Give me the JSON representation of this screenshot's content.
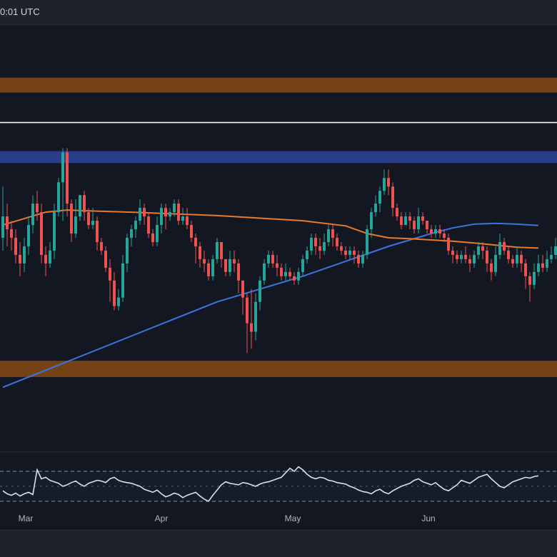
{
  "header": {
    "time_label": "0:01 UTC"
  },
  "colors": {
    "background": "#131722",
    "zone_orange": "#7a4416",
    "zone_blue": "#2a3f8f",
    "level_line": "#ffffff",
    "candle_up": "#26a69a",
    "candle_down": "#ef5350",
    "ma_orange": "#e8792a",
    "ma_blue": "#3b74e0",
    "rsi_line": "#d8dff0",
    "rsi_band": "#8a8f99",
    "separator": "#2a2e39"
  },
  "chart_data": {
    "type": "candlestick",
    "x_ticks": [
      "Mar",
      "Apr",
      "May",
      "Jun"
    ],
    "price_range": [
      0,
      100
    ],
    "zones": [
      {
        "name": "resistance-zone-top",
        "from": 87.5,
        "to": 84.0,
        "color": "orange"
      },
      {
        "name": "supply-zone",
        "from": 70.3,
        "to": 67.5,
        "color": "blue"
      },
      {
        "name": "support-zone-bottom",
        "from": 21.2,
        "to": 17.4,
        "color": "orange"
      }
    ],
    "levels": [
      {
        "name": "horizontal-level",
        "value": 77.0
      }
    ],
    "candles": [
      [
        50,
        55,
        62,
        47
      ],
      [
        55,
        52,
        58,
        48
      ],
      [
        52,
        50,
        54,
        47
      ],
      [
        50,
        46,
        52,
        44
      ],
      [
        46,
        44,
        49,
        41
      ],
      [
        44,
        48,
        50,
        42
      ],
      [
        48,
        53,
        55,
        46
      ],
      [
        53,
        58,
        60,
        51
      ],
      [
        58,
        56,
        61,
        54
      ],
      [
        56,
        46,
        58,
        44
      ],
      [
        46,
        44,
        48,
        41
      ],
      [
        44,
        47,
        49,
        43
      ],
      [
        47,
        56,
        58,
        45
      ],
      [
        56,
        63,
        64,
        55
      ],
      [
        63,
        70,
        71,
        54
      ],
      [
        70,
        58,
        71,
        55
      ],
      [
        58,
        51,
        59,
        49
      ],
      [
        51,
        55,
        59,
        50
      ],
      [
        55,
        60,
        60,
        54
      ],
      [
        60,
        56,
        61,
        54
      ],
      [
        56,
        53,
        57,
        52
      ],
      [
        53,
        54,
        57,
        52
      ],
      [
        54,
        49,
        55,
        47
      ],
      [
        49,
        47,
        50,
        46
      ],
      [
        47,
        43,
        48,
        42
      ],
      [
        43,
        40,
        45,
        35
      ],
      [
        40,
        34,
        42,
        33
      ],
      [
        34,
        36,
        38,
        33
      ],
      [
        36,
        44,
        46,
        35
      ],
      [
        44,
        50,
        51,
        42
      ],
      [
        50,
        52,
        53,
        48
      ],
      [
        52,
        54,
        55,
        50
      ],
      [
        54,
        57,
        59,
        53
      ],
      [
        57,
        55,
        58,
        53
      ],
      [
        55,
        51,
        56,
        50
      ],
      [
        51,
        49,
        52,
        48
      ],
      [
        49,
        53,
        55,
        48
      ],
      [
        53,
        57,
        58,
        51
      ],
      [
        57,
        55,
        58,
        52
      ],
      [
        55,
        56,
        57,
        54
      ],
      [
        56,
        58,
        59,
        55
      ],
      [
        58,
        54,
        59,
        53
      ],
      [
        54,
        55,
        57,
        53
      ],
      [
        55,
        53,
        57,
        52
      ],
      [
        53,
        50,
        54,
        49
      ],
      [
        50,
        48,
        51,
        44
      ],
      [
        48,
        45,
        49,
        43
      ],
      [
        45,
        44,
        47,
        42
      ],
      [
        44,
        41,
        45,
        40
      ],
      [
        41,
        45,
        46,
        40
      ],
      [
        45,
        49,
        50,
        44
      ],
      [
        49,
        45,
        49,
        43
      ],
      [
        45,
        42,
        45,
        41
      ],
      [
        42,
        45,
        47,
        41
      ],
      [
        45,
        44,
        47,
        42
      ],
      [
        44,
        40,
        45,
        37
      ],
      [
        40,
        36,
        40,
        32
      ],
      [
        36,
        30,
        37,
        23
      ],
      [
        30,
        28,
        38,
        24
      ],
      [
        28,
        35,
        37,
        26
      ],
      [
        35,
        40,
        41,
        33
      ],
      [
        40,
        44,
        45,
        39
      ],
      [
        44,
        46,
        47,
        43
      ],
      [
        46,
        44,
        47,
        43
      ],
      [
        44,
        43,
        46,
        41
      ],
      [
        43,
        41,
        44,
        40
      ],
      [
        41,
        42,
        44,
        40
      ],
      [
        42,
        41,
        43,
        40
      ],
      [
        41,
        40,
        42,
        39
      ],
      [
        40,
        42,
        43,
        39
      ],
      [
        42,
        45,
        46,
        41
      ],
      [
        45,
        47,
        48,
        44
      ],
      [
        47,
        50,
        51,
        46
      ],
      [
        50,
        48,
        51,
        46
      ],
      [
        48,
        47,
        50,
        45
      ],
      [
        47,
        49,
        51,
        46
      ],
      [
        49,
        52,
        53,
        48
      ],
      [
        52,
        50,
        53,
        48
      ],
      [
        50,
        48,
        51,
        47
      ],
      [
        48,
        47,
        49,
        46
      ],
      [
        47,
        46,
        48,
        45
      ],
      [
        46,
        47,
        48,
        45
      ],
      [
        47,
        46,
        48,
        44
      ],
      [
        46,
        44,
        47,
        43
      ],
      [
        44,
        46,
        47,
        43
      ],
      [
        46,
        52,
        53,
        45
      ],
      [
        52,
        56,
        57,
        50
      ],
      [
        56,
        58,
        60,
        55
      ],
      [
        58,
        61,
        62,
        56
      ],
      [
        61,
        64,
        66,
        60
      ],
      [
        64,
        62,
        66,
        60
      ],
      [
        62,
        57,
        63,
        55
      ],
      [
        57,
        55,
        58,
        54
      ],
      [
        55,
        53,
        56,
        52
      ],
      [
        53,
        55,
        56,
        53
      ],
      [
        55,
        54,
        56,
        52
      ],
      [
        54,
        52,
        55,
        51
      ],
      [
        52,
        55,
        57,
        51
      ],
      [
        55,
        54,
        56,
        53
      ],
      [
        54,
        52,
        54,
        51
      ],
      [
        52,
        51,
        53,
        50
      ],
      [
        51,
        52,
        53,
        50
      ],
      [
        52,
        51,
        53,
        50
      ],
      [
        51,
        50,
        52,
        49
      ],
      [
        50,
        47,
        51,
        46
      ],
      [
        47,
        46,
        48,
        44
      ],
      [
        46,
        45,
        47,
        44
      ],
      [
        45,
        46,
        47,
        44
      ],
      [
        46,
        45,
        48,
        44
      ],
      [
        45,
        44,
        46,
        42
      ],
      [
        44,
        46,
        47,
        43
      ],
      [
        46,
        48,
        49,
        45
      ],
      [
        48,
        47,
        49,
        45
      ],
      [
        47,
        44,
        48,
        42
      ],
      [
        44,
        42,
        45,
        40
      ],
      [
        42,
        46,
        48,
        41
      ],
      [
        46,
        49,
        51,
        45
      ],
      [
        49,
        47,
        50,
        46
      ],
      [
        47,
        45,
        48,
        44
      ],
      [
        45,
        44,
        46,
        43
      ],
      [
        44,
        46,
        48,
        43
      ],
      [
        46,
        44,
        47,
        42
      ],
      [
        44,
        41,
        45,
        38
      ],
      [
        41,
        39,
        42,
        35
      ],
      [
        39,
        42,
        44,
        38
      ],
      [
        42,
        44,
        46,
        41
      ],
      [
        44,
        43,
        46,
        42
      ],
      [
        43,
        45,
        47,
        42
      ],
      [
        45,
        46,
        48,
        44
      ],
      [
        46,
        48,
        50,
        45
      ]
    ],
    "ma_orange": [
      [
        0,
        53
      ],
      [
        5,
        54.5
      ],
      [
        10,
        56
      ],
      [
        15,
        56.5
      ],
      [
        20,
        56.3
      ],
      [
        30,
        56
      ],
      [
        40,
        55.6
      ],
      [
        50,
        55.2
      ],
      [
        60,
        54.6
      ],
      [
        70,
        54
      ],
      [
        80,
        52.8
      ],
      [
        85,
        51
      ],
      [
        90,
        50
      ],
      [
        95,
        49.8
      ],
      [
        100,
        49.5
      ],
      [
        105,
        49.2
      ],
      [
        110,
        48.8
      ],
      [
        115,
        48.3
      ],
      [
        120,
        47.8
      ],
      [
        125,
        47.6
      ]
    ],
    "ma_blue": [
      [
        0,
        15
      ],
      [
        10,
        19
      ],
      [
        20,
        23
      ],
      [
        30,
        27
      ],
      [
        40,
        31
      ],
      [
        50,
        35
      ],
      [
        60,
        38
      ],
      [
        70,
        41
      ],
      [
        80,
        44.5
      ],
      [
        90,
        48
      ],
      [
        100,
        51
      ],
      [
        105,
        52.3
      ],
      [
        110,
        53.2
      ],
      [
        115,
        53.4
      ],
      [
        120,
        53.2
      ],
      [
        125,
        52.9
      ]
    ],
    "rsi": {
      "upper_band": 70,
      "lower_band": 30,
      "values": [
        44,
        40,
        38,
        41,
        37,
        40,
        42,
        39,
        72,
        60,
        62,
        58,
        56,
        54,
        50,
        52,
        55,
        57,
        53,
        50,
        54,
        56,
        58,
        57,
        55,
        60,
        62,
        58,
        56,
        55,
        54,
        52,
        50,
        46,
        44,
        42,
        45,
        40,
        36,
        38,
        41,
        39,
        35,
        38,
        40,
        42,
        37,
        33,
        30,
        38,
        45,
        52,
        56,
        54,
        53,
        52,
        55,
        54,
        52,
        50,
        53,
        55,
        56,
        58,
        60,
        62,
        68,
        74,
        70,
        76,
        72,
        66,
        62,
        60,
        62,
        61,
        58,
        57,
        55,
        54,
        53,
        50,
        48,
        45,
        43,
        42,
        40,
        44,
        46,
        42,
        40,
        44,
        47,
        50,
        52,
        54,
        58,
        60,
        56,
        54,
        52,
        55,
        50,
        46,
        44,
        48,
        52,
        58,
        56,
        54,
        58,
        62,
        64,
        66,
        60,
        55,
        50,
        48,
        52,
        56,
        58,
        60,
        62,
        61,
        63,
        64
      ]
    }
  }
}
